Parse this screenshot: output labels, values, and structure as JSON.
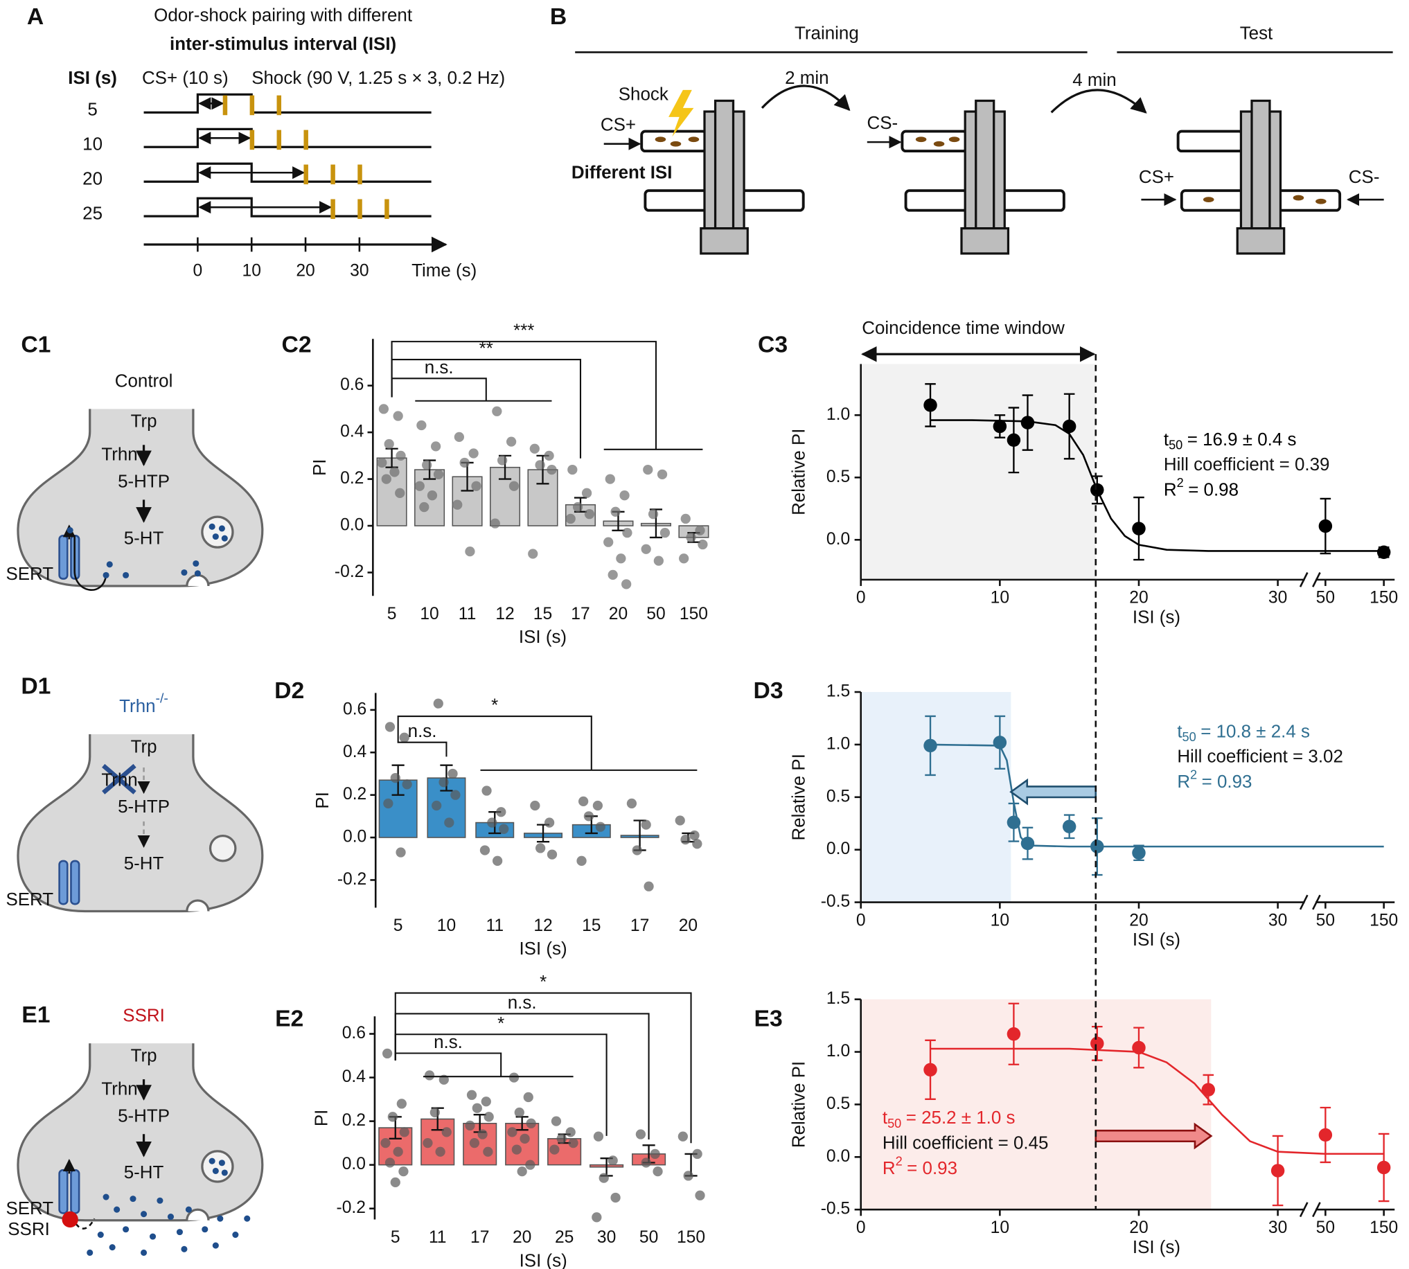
{
  "panel_a": {
    "label": "A",
    "title": [
      "Odor-shock pairing with different",
      "inter-stimulus interval (ISI)"
    ],
    "isi_label": "ISI (s)",
    "cs_label": "CS+ (10 s)",
    "shock_label": "Shock (90 V, 1.25 s × 3, 0.2 Hz)",
    "cs_duration": 10,
    "isi": [
      5,
      10,
      20,
      25
    ],
    "shocks": [
      [
        5,
        10,
        15
      ],
      [
        10,
        15,
        20
      ],
      [
        20,
        25,
        30
      ],
      [
        25,
        30,
        35
      ]
    ],
    "time_lim": [
      -10,
      46
    ],
    "time_ticks": [
      0,
      10,
      20,
      30
    ],
    "time_label": "Time (s)"
  },
  "panel_b": {
    "label": "B",
    "training": "Training",
    "test": "Test",
    "interval1": "2 min",
    "interval2": "4 min",
    "shock": "Shock",
    "cs_plus": "CS+",
    "different_isi": "Different ISI",
    "cs_minus": "CS-",
    "test_cs_plus": "CS+",
    "test_cs_minus": "CS-"
  },
  "schematics": [
    {
      "label": "C1",
      "title": "Control",
      "trp": "Trp",
      "trhn": "Trhn",
      "htp": "5-HTP",
      "ht": "5-HT",
      "sert": "SERT"
    },
    {
      "label": "D1",
      "title": "Trhn",
      "title_sup": "-/-",
      "trp": "Trp",
      "trhn": "Trhn",
      "htp": "5-HTP",
      "ht": "5-HT",
      "sert": "SERT"
    },
    {
      "label": "E1",
      "title": "SSRI",
      "trp": "Trp",
      "trhn": "Trhn",
      "htp": "5-HTP",
      "ht": "5-HT",
      "sert": "SERT",
      "ssri": "SSRI"
    }
  ],
  "chart_data": [
    {
      "type": "bar",
      "label": "C2",
      "ylabel": "PI",
      "xlabel": "ISI (s)",
      "categories": [
        "5",
        "10",
        "11",
        "12",
        "15",
        "17",
        "20",
        "50",
        "150"
      ],
      "values": [
        0.29,
        0.24,
        0.21,
        0.25,
        0.24,
        0.09,
        0.02,
        0.01,
        -0.05
      ],
      "errors": [
        0.04,
        0.04,
        0.06,
        0.05,
        0.06,
        0.03,
        0.04,
        0.06,
        0.02
      ],
      "points": [
        [
          0.5,
          0.47,
          0.35,
          0.3,
          0.27,
          0.23,
          0.2,
          0.14
        ],
        [
          0.43,
          0.34,
          0.26,
          0.22,
          0.17,
          0.13,
          0.08
        ],
        [
          0.38,
          0.31,
          0.27,
          0.17,
          0.09,
          -0.11
        ],
        [
          0.49,
          0.36,
          0.28,
          0.17,
          0.01
        ],
        [
          0.33,
          0.3,
          0.26,
          0.24,
          -0.12
        ],
        [
          0.24,
          0.14,
          0.08,
          0.05,
          0.03
        ],
        [
          0.2,
          0.13,
          0.06,
          -0.03,
          -0.07,
          -0.14,
          -0.21,
          -0.25
        ],
        [
          0.24,
          0.22,
          0.05,
          -0.03,
          -0.1,
          -0.15
        ],
        [
          0.03,
          -0.02,
          -0.05,
          -0.08,
          -0.14
        ]
      ],
      "color": "#c8c8c8",
      "point_color": "#6e6e6e",
      "ylim": [
        -0.3,
        0.8
      ],
      "yticks": [
        -0.2,
        {
          "value": 0,
          "label": "0.0"
        },
        0.2,
        0.4,
        0.6
      ],
      "annotations": [
        "***",
        "**",
        "n.s."
      ]
    },
    {
      "type": "line",
      "label": "C3",
      "ylabel": "Relative PI",
      "xlabel": "ISI (s)",
      "x": [
        5,
        10,
        11,
        12,
        15,
        17,
        20,
        50,
        150
      ],
      "values": [
        1.08,
        0.91,
        0.8,
        0.94,
        0.91,
        0.4,
        0.09,
        0.11,
        -0.1
      ],
      "errors": [
        0.17,
        0.09,
        0.26,
        0.22,
        0.26,
        0.11,
        0.25,
        0.22,
        0.04
      ],
      "color": "#000000",
      "xlim": [
        0,
        150
      ],
      "xticks": [
        0,
        10,
        20,
        30,
        50,
        150
      ],
      "ylim": [
        -0.32,
        1.41
      ],
      "yticks": [
        {
          "value": 0,
          "label": "0.0"
        },
        0.5,
        {
          "value": 1,
          "label": "1.0"
        }
      ],
      "fit": {
        "x": [
          5,
          8,
          12,
          14,
          15,
          16,
          17,
          18,
          19,
          20,
          22,
          25,
          30,
          50,
          150
        ],
        "y": [
          0.96,
          0.96,
          0.95,
          0.92,
          0.85,
          0.68,
          0.4,
          0.17,
          0.03,
          -0.04,
          -0.08,
          -0.09,
          -0.09,
          -0.09,
          -0.09
        ]
      },
      "window": [
        0,
        16.9
      ],
      "shade_color": "#f2f2f2",
      "window_label": "Coincidence time window",
      "stats": {
        "t": "t",
        "t_sub": "50",
        "t_value": "= 16.9 ± 0.4 s",
        "hill": "Hill coefficient = 0.39",
        "r": "R",
        "r_sup": "2",
        "r_value": "= 0.98"
      }
    },
    {
      "type": "bar",
      "label": "D2",
      "ylabel": "PI",
      "xlabel": "ISI (s)",
      "categories": [
        "5",
        "10",
        "11",
        "12",
        "15",
        "17",
        "20"
      ],
      "values": [
        0.27,
        0.28,
        0.07,
        0.02,
        0.06,
        0.01,
        0
      ],
      "errors": [
        0.07,
        0.06,
        0.05,
        0.04,
        0.04,
        0.07,
        0.02
      ],
      "points": [
        [
          0.52,
          0.47,
          0.28,
          0.25,
          0.16,
          -0.07
        ],
        [
          0.63,
          0.3,
          0.26,
          0.2,
          0.15,
          0.07
        ],
        [
          0.22,
          0.12,
          0.07,
          0.04,
          -0.06,
          -0.11
        ],
        [
          0.15,
          0.07,
          -0.05,
          -0.08
        ],
        [
          0.17,
          0.15,
          0.1,
          0.05,
          -0.11
        ],
        [
          0.16,
          0.06,
          -0.06,
          -0.23
        ],
        [
          0.08,
          0.01,
          -0.01,
          -0.03
        ]
      ],
      "color": "#3a8fc8",
      "point_color": "#5a5a5a",
      "ylim": [
        -0.33,
        0.68
      ],
      "yticks": [
        -0.2,
        {
          "value": 0,
          "label": "0.0"
        },
        0.2,
        0.4,
        0.6
      ],
      "annotations": [
        "*",
        "n.s."
      ]
    },
    {
      "type": "line",
      "label": "D3",
      "ylabel": "Relative PI",
      "xlabel": "ISI (s)",
      "x": [
        5,
        10,
        11,
        12,
        15,
        17,
        20
      ],
      "values": [
        0.99,
        1.02,
        0.26,
        0.06,
        0.22,
        0.03,
        -0.03
      ],
      "errors": [
        0.28,
        0.25,
        0.18,
        0.15,
        0.11,
        0.27,
        0.07
      ],
      "color": "#2f6f91",
      "xlim": [
        0,
        150
      ],
      "xticks": [
        0,
        10,
        20,
        30,
        50,
        150
      ],
      "ylim": [
        -0.5,
        1.5
      ],
      "yticks": [
        -0.5,
        {
          "value": 0,
          "label": "0.0"
        },
        0.5,
        {
          "value": 1,
          "label": "1.0"
        },
        1.5
      ],
      "fit": {
        "x": [
          5,
          10,
          10.5,
          11,
          11.5,
          12,
          15,
          20,
          30,
          50,
          150
        ],
        "y": [
          1,
          0.99,
          0.85,
          0.45,
          0.12,
          0.04,
          0.03,
          0.03,
          0.03,
          0.03,
          0.03
        ]
      },
      "window": [
        0,
        10.8
      ],
      "shade_color": "#e8f1fa",
      "shift": [
        16.9,
        10.8
      ],
      "arrow_color": "#a9cbe3",
      "stats": {
        "t": "t",
        "t_sub": "50",
        "t_value": "= 10.8 ± 2.4 s",
        "hill": "Hill coefficient = 3.02",
        "r": "R",
        "r_sup": "2",
        "r_value": "= 0.93"
      }
    },
    {
      "type": "bar",
      "label": "E2",
      "ylabel": "PI",
      "xlabel": "ISI (s)",
      "categories": [
        "5",
        "11",
        "17",
        "20",
        "25",
        "30",
        "50",
        "150"
      ],
      "values": [
        0.17,
        0.21,
        0.19,
        0.19,
        0.12,
        -0.01,
        0.05,
        0
      ],
      "errors": [
        0.05,
        0.05,
        0.04,
        0.03,
        0.02,
        0.04,
        0.04,
        0.05
      ],
      "points": [
        [
          0.51,
          0.28,
          0.22,
          0.15,
          0.1,
          0.06,
          0.01,
          -0.03,
          -0.08
        ],
        [
          0.41,
          0.39,
          0.24,
          0.15,
          0.1,
          0.06
        ],
        [
          0.32,
          0.29,
          0.26,
          0.22,
          0.18,
          0.14,
          0.1,
          0.06
        ],
        [
          0.4,
          0.31,
          0.24,
          0.19,
          0.15,
          0.12,
          0.07,
          0,
          -0.03
        ],
        [
          0.2,
          0.15,
          0.12,
          0.1,
          0.07
        ],
        [
          0.13,
          0.02,
          -0.06,
          -0.15,
          -0.24
        ],
        [
          0.14,
          0.05,
          0.01,
          -0.03
        ],
        [
          0.13,
          0.05,
          -0.05,
          -0.14
        ]
      ],
      "color": "#eb6b6b",
      "point_color": "#5a5a5a",
      "ylim": [
        -0.25,
        0.68
      ],
      "yticks": [
        -0.2,
        {
          "value": 0,
          "label": "0.0"
        },
        0.2,
        0.4,
        0.6
      ],
      "annotations": [
        "*",
        "n.s.",
        "*",
        "n.s."
      ]
    },
    {
      "type": "line",
      "label": "E3",
      "ylabel": "Relative PI",
      "xlabel": "ISI (s)",
      "x": [
        5,
        11,
        17,
        20,
        25,
        30,
        50,
        150
      ],
      "values": [
        0.83,
        1.17,
        1.08,
        1.04,
        0.64,
        -0.13,
        0.21,
        -0.1
      ],
      "errors": [
        0.28,
        0.29,
        0.16,
        0.19,
        0.14,
        0.33,
        0.26,
        0.32
      ],
      "color": "#e3262b",
      "xlim": [
        0,
        150
      ],
      "xticks": [
        0,
        10,
        20,
        30,
        50,
        150
      ],
      "ylim": [
        -0.5,
        1.5
      ],
      "yticks": [
        -0.5,
        {
          "value": 0,
          "label": "0.0"
        },
        0.5,
        {
          "value": 1,
          "label": "1.0"
        },
        1.5
      ],
      "fit": {
        "x": [
          5,
          15,
          20,
          22,
          24,
          25,
          26,
          28,
          30,
          50,
          150
        ],
        "y": [
          1.03,
          1.03,
          1,
          0.9,
          0.7,
          0.55,
          0.4,
          0.15,
          0.05,
          0.03,
          0.03
        ]
      },
      "window": [
        0,
        25.2
      ],
      "shade_color": "#fcecea",
      "shift": [
        16.9,
        25.2
      ],
      "arrow_color": "#f08a8a",
      "stats": {
        "t": "t",
        "t_sub": "50",
        "t_value": "= 25.2 ± 1.0 s",
        "hill": "Hill coefficient = 0.45",
        "r": "R",
        "r_sup": "2",
        "r_value": "= 0.93"
      }
    }
  ]
}
